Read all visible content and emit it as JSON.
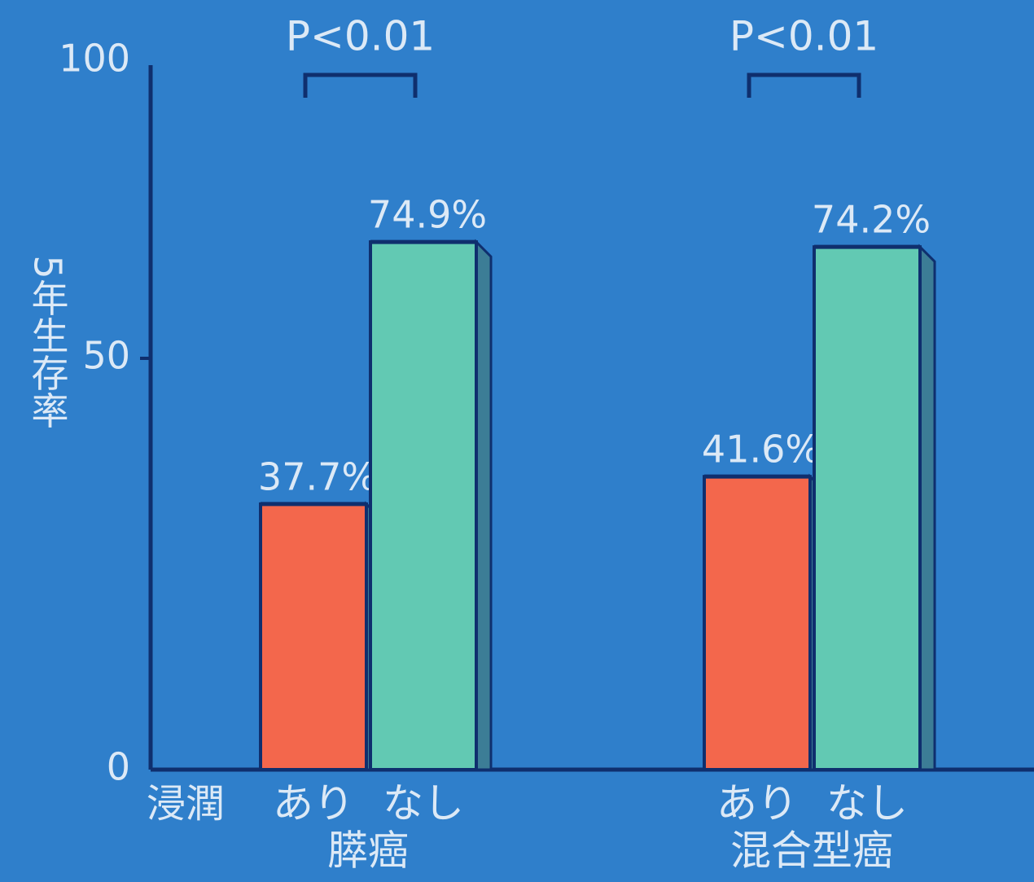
{
  "colors": {
    "background": "#2f7fcb",
    "axis": "#0f2f6e",
    "label": "#dce9f6",
    "series_ari": "#f3674c",
    "series_nashi": "#62c9b3"
  },
  "chart_data": {
    "type": "bar",
    "ylabel": "5年生存率",
    "yticks": [
      "0",
      "50",
      "100"
    ],
    "ylim": [
      0,
      100
    ],
    "xaxis_row_label": "浸潤",
    "groups": [
      {
        "name": "膵癌",
        "significance": "P<0.01",
        "bars": [
          {
            "category": "あり",
            "value": 37.7,
            "label": "37.7%"
          },
          {
            "category": "なし",
            "value": 74.9,
            "label": "74.9%"
          }
        ]
      },
      {
        "name": "混合型癌",
        "significance": "P<0.01",
        "bars": [
          {
            "category": "あり",
            "value": 41.6,
            "label": "41.6%"
          },
          {
            "category": "なし",
            "value": 74.2,
            "label": "74.2%"
          }
        ]
      }
    ],
    "grid": false,
    "legend": "none"
  }
}
